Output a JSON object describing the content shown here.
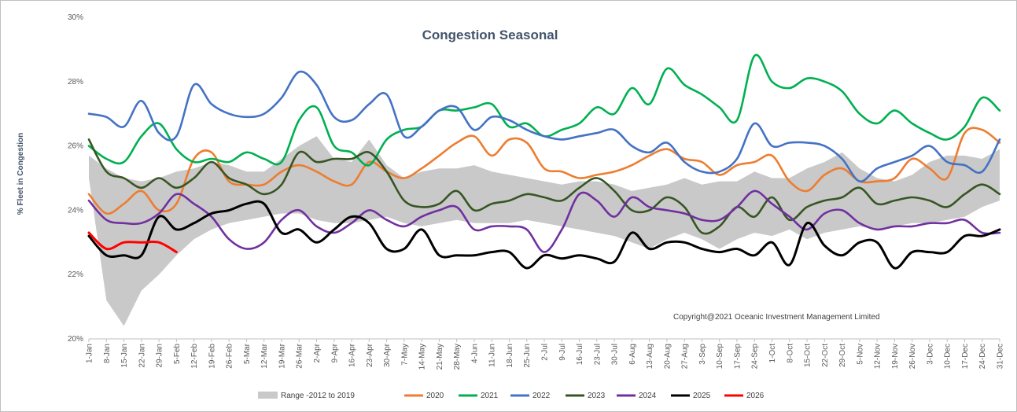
{
  "chart_data": {
    "type": "line",
    "title": "Congestion Seasonal",
    "ylabel": "% Fleet in Congestion",
    "xlabel": "",
    "ylim": [
      20,
      30
    ],
    "y_ticks": [
      "20%",
      "22%",
      "24%",
      "26%",
      "28%",
      "30%"
    ],
    "y_tick_values": [
      20,
      22,
      24,
      26,
      28,
      30
    ],
    "x_tick_labels": [
      "1-Jan",
      "8-Jan",
      "15-Jan",
      "22-Jan",
      "29-Jan",
      "5-Feb",
      "12-Feb",
      "19-Feb",
      "26-Feb",
      "5-Mar",
      "12-Mar",
      "19-Mar",
      "26-Mar",
      "2-Apr",
      "9-Apr",
      "16-Apr",
      "23-Apr",
      "30-Apr",
      "7-May",
      "14-May",
      "21-May",
      "28-May",
      "4-Jun",
      "11-Jun",
      "18-Jun",
      "25-Jun",
      "2-Jul",
      "9-Jul",
      "16-Jul",
      "23-Jul",
      "30-Jul",
      "6-Aug",
      "13-Aug",
      "20-Aug",
      "27-Aug",
      "3-Sep",
      "10-Sep",
      "17-Sep",
      "24-Sep",
      "1-Oct",
      "8-Oct",
      "15-Oct",
      "22-Oct",
      "29-Oct",
      "5-Nov",
      "12-Nov",
      "19-Nov",
      "26-Nov",
      "3-Dec",
      "10-Dec",
      "17-Dec",
      "24-Dec",
      "31-Dec"
    ],
    "annotation": "Copyright@2021 Oceanic Investment Management Limited",
    "legend_position": "bottom",
    "grid": false,
    "range_band": {
      "name": "Range -2012 to 2019",
      "color": "#c9c9c9",
      "days": [
        1,
        8,
        15,
        22,
        29,
        36,
        43,
        50,
        57,
        64,
        71,
        78,
        85,
        92,
        99,
        106,
        113,
        120,
        127,
        134,
        141,
        148,
        155,
        162,
        169,
        176,
        183,
        190,
        197,
        204,
        211,
        218,
        225,
        232,
        239,
        246,
        253,
        260,
        267,
        274,
        281,
        288,
        295,
        302,
        309,
        316,
        323,
        330,
        337,
        344,
        351,
        358,
        365
      ],
      "low": [
        25.0,
        21.2,
        20.4,
        21.5,
        22.0,
        22.6,
        23.1,
        23.4,
        23.6,
        23.7,
        23.8,
        23.9,
        23.9,
        23.7,
        23.6,
        23.6,
        23.7,
        23.8,
        23.6,
        23.5,
        23.6,
        23.7,
        23.6,
        23.6,
        23.6,
        23.7,
        23.6,
        23.5,
        23.4,
        23.3,
        23.2,
        23.0,
        22.8,
        23.1,
        23.3,
        23.1,
        22.8,
        23.1,
        23.3,
        23.2,
        23.4,
        23.1,
        23.3,
        23.4,
        23.5,
        23.4,
        23.5,
        23.6,
        23.6,
        23.7,
        23.8,
        24.1,
        24.3
      ],
      "high": [
        25.7,
        25.3,
        25.0,
        24.9,
        25.0,
        25.2,
        25.3,
        25.5,
        25.4,
        25.2,
        25.2,
        25.6,
        26.0,
        26.3,
        25.6,
        25.5,
        26.2,
        25.4,
        25.0,
        25.2,
        25.3,
        25.3,
        25.4,
        25.2,
        25.1,
        25.0,
        24.9,
        24.8,
        24.9,
        24.9,
        24.8,
        24.6,
        24.7,
        24.8,
        25.0,
        24.8,
        24.9,
        24.9,
        25.2,
        25.0,
        25.0,
        25.3,
        25.5,
        25.8,
        25.3,
        25.0,
        24.9,
        25.1,
        25.5,
        25.7,
        25.7,
        25.6,
        25.9
      ]
    },
    "series": [
      {
        "name": "2020",
        "color": "#ed7d31",
        "days": [
          1,
          8,
          15,
          22,
          29,
          36,
          43,
          50,
          57,
          64,
          71,
          78,
          85,
          92,
          99,
          106,
          113,
          120,
          127,
          134,
          141,
          148,
          155,
          162,
          169,
          176,
          183,
          190,
          197,
          204,
          211,
          218,
          225,
          232,
          239,
          246,
          253,
          260,
          267,
          274,
          281,
          288,
          295,
          302,
          309,
          316,
          323,
          330,
          337,
          344,
          351,
          358,
          365
        ],
        "values": [
          24.5,
          23.9,
          24.2,
          24.6,
          24.0,
          24.2,
          25.6,
          25.8,
          24.9,
          24.8,
          24.8,
          25.2,
          25.4,
          25.2,
          24.9,
          24.8,
          25.5,
          25.2,
          25.0,
          25.3,
          25.7,
          26.1,
          26.3,
          25.7,
          26.2,
          26.1,
          25.3,
          25.2,
          25.0,
          25.1,
          25.2,
          25.4,
          25.7,
          25.9,
          25.6,
          25.5,
          25.1,
          25.4,
          25.5,
          25.7,
          24.9,
          24.6,
          25.1,
          25.3,
          24.9,
          24.9,
          25.0,
          25.6,
          25.3,
          25.0,
          26.4,
          26.5,
          26.1
        ]
      },
      {
        "name": "2021",
        "color": "#00b050",
        "days": [
          1,
          8,
          15,
          22,
          29,
          36,
          43,
          50,
          57,
          64,
          71,
          78,
          85,
          92,
          99,
          106,
          113,
          120,
          127,
          134,
          141,
          148,
          155,
          162,
          169,
          176,
          183,
          190,
          197,
          204,
          211,
          218,
          225,
          232,
          239,
          246,
          253,
          260,
          267,
          274,
          281,
          288,
          295,
          302,
          309,
          316,
          323,
          330,
          337,
          344,
          351,
          358,
          365
        ],
        "values": [
          26.0,
          25.6,
          25.5,
          26.3,
          26.7,
          25.9,
          25.5,
          25.6,
          25.5,
          25.8,
          25.6,
          25.5,
          26.8,
          27.2,
          26.0,
          25.8,
          25.4,
          26.2,
          26.5,
          26.6,
          27.1,
          27.1,
          27.2,
          27.3,
          26.6,
          26.7,
          26.3,
          26.5,
          26.7,
          27.2,
          27.0,
          27.8,
          27.3,
          28.4,
          27.9,
          27.6,
          27.2,
          26.8,
          28.8,
          28.0,
          27.8,
          28.1,
          28.0,
          27.7,
          27.0,
          26.7,
          27.1,
          26.7,
          26.4,
          26.2,
          26.6,
          27.5,
          27.1
        ]
      },
      {
        "name": "2022",
        "color": "#4472c4",
        "days": [
          1,
          8,
          15,
          22,
          29,
          36,
          43,
          50,
          57,
          64,
          71,
          78,
          85,
          92,
          99,
          106,
          113,
          120,
          127,
          134,
          141,
          148,
          155,
          162,
          169,
          176,
          183,
          190,
          197,
          204,
          211,
          218,
          225,
          232,
          239,
          246,
          253,
          260,
          267,
          274,
          281,
          288,
          295,
          302,
          309,
          316,
          323,
          330,
          337,
          344,
          351,
          358,
          365
        ],
        "values": [
          27.0,
          26.9,
          26.6,
          27.4,
          26.4,
          26.3,
          27.9,
          27.3,
          27.0,
          26.9,
          27.0,
          27.5,
          28.3,
          27.9,
          26.9,
          26.8,
          27.3,
          27.6,
          26.3,
          26.6,
          27.1,
          27.2,
          26.5,
          26.9,
          26.8,
          26.5,
          26.3,
          26.2,
          26.3,
          26.4,
          26.5,
          26.0,
          25.8,
          26.1,
          25.5,
          25.2,
          25.2,
          25.6,
          26.7,
          26.0,
          26.1,
          26.1,
          26.0,
          25.6,
          24.9,
          25.3,
          25.5,
          25.7,
          26.0,
          25.5,
          25.4,
          25.2,
          26.2
        ]
      },
      {
        "name": "2023",
        "color": "#375623",
        "days": [
          1,
          8,
          15,
          22,
          29,
          36,
          43,
          50,
          57,
          64,
          71,
          78,
          85,
          92,
          99,
          106,
          113,
          120,
          127,
          134,
          141,
          148,
          155,
          162,
          169,
          176,
          183,
          190,
          197,
          204,
          211,
          218,
          225,
          232,
          239,
          246,
          253,
          260,
          267,
          274,
          281,
          288,
          295,
          302,
          309,
          316,
          323,
          330,
          337,
          344,
          351,
          358,
          365
        ],
        "values": [
          26.2,
          25.2,
          25.0,
          24.7,
          25.0,
          24.7,
          25.0,
          25.5,
          25.0,
          24.8,
          24.5,
          24.8,
          25.8,
          25.5,
          25.6,
          25.6,
          25.8,
          25.2,
          24.3,
          24.1,
          24.2,
          24.6,
          24.0,
          24.2,
          24.3,
          24.5,
          24.4,
          24.3,
          24.7,
          25.0,
          24.6,
          24.0,
          24.0,
          24.4,
          24.1,
          23.3,
          23.5,
          24.1,
          23.8,
          24.4,
          23.7,
          24.1,
          24.3,
          24.4,
          24.7,
          24.2,
          24.3,
          24.4,
          24.3,
          24.1,
          24.5,
          24.8,
          24.5
        ]
      },
      {
        "name": "2024",
        "color": "#7030a0",
        "days": [
          1,
          8,
          15,
          22,
          29,
          36,
          43,
          50,
          57,
          64,
          71,
          78,
          85,
          92,
          99,
          106,
          113,
          120,
          127,
          134,
          141,
          148,
          155,
          162,
          169,
          176,
          183,
          190,
          197,
          204,
          211,
          218,
          225,
          232,
          239,
          246,
          253,
          260,
          267,
          274,
          281,
          288,
          295,
          302,
          309,
          316,
          323,
          330,
          337,
          344,
          351,
          358,
          365
        ],
        "values": [
          24.3,
          23.7,
          23.6,
          23.6,
          23.9,
          24.5,
          24.2,
          23.8,
          23.1,
          22.8,
          23.0,
          23.7,
          24.0,
          23.5,
          23.3,
          23.6,
          24.0,
          23.7,
          23.5,
          23.8,
          24.0,
          24.1,
          23.4,
          23.5,
          23.5,
          23.4,
          22.7,
          23.4,
          24.5,
          24.3,
          23.8,
          24.4,
          24.1,
          24.0,
          23.9,
          23.7,
          23.7,
          24.1,
          24.6,
          24.2,
          23.8,
          23.4,
          23.9,
          24.0,
          23.6,
          23.4,
          23.5,
          23.5,
          23.6,
          23.6,
          23.7,
          23.3,
          23.3
        ]
      },
      {
        "name": "2025",
        "color": "#000000",
        "days": [
          1,
          8,
          15,
          22,
          29,
          36,
          43,
          50,
          57,
          64,
          71,
          78,
          85,
          92,
          99,
          106,
          113,
          120,
          127,
          134,
          141,
          148,
          155,
          162,
          169,
          176,
          183,
          190,
          197,
          204,
          211,
          218,
          225,
          232,
          239,
          246,
          253,
          260,
          267,
          274,
          281,
          288,
          295,
          302,
          309,
          316,
          323,
          330,
          337,
          344,
          351,
          358,
          365
        ],
        "values": [
          23.2,
          22.6,
          22.6,
          22.6,
          23.8,
          23.4,
          23.6,
          23.9,
          24.0,
          24.2,
          24.2,
          23.3,
          23.4,
          23.0,
          23.4,
          23.8,
          23.6,
          22.8,
          22.8,
          23.4,
          22.6,
          22.6,
          22.6,
          22.7,
          22.7,
          22.2,
          22.6,
          22.5,
          22.6,
          22.5,
          22.4,
          23.3,
          22.8,
          23.0,
          23.0,
          22.8,
          22.7,
          22.8,
          22.6,
          23.0,
          22.3,
          23.6,
          22.9,
          22.6,
          23.0,
          23.0,
          22.2,
          22.7,
          22.7,
          22.7,
          23.2,
          23.2,
          23.4
        ]
      },
      {
        "name": "2026",
        "color": "#ff0000",
        "days": [
          1,
          8,
          15,
          22,
          29,
          36
        ],
        "values": [
          23.3,
          22.8,
          23.0,
          23.0,
          23.0,
          22.7
        ]
      }
    ]
  }
}
